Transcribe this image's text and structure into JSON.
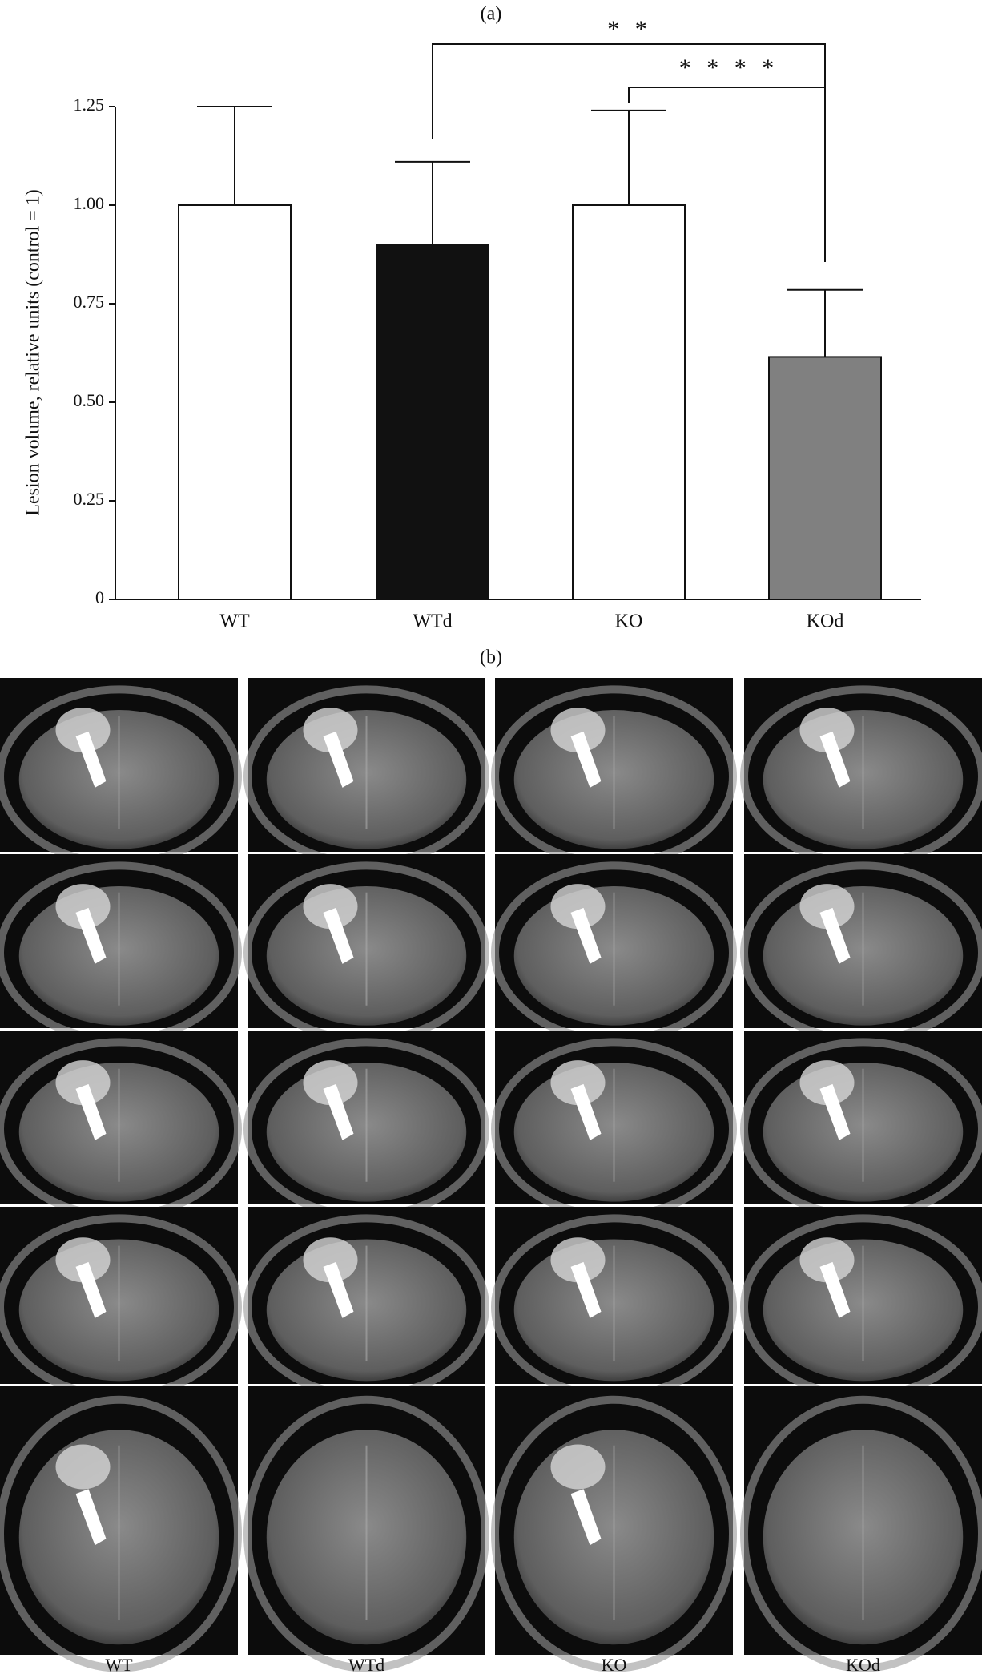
{
  "chart_data": {
    "type": "bar",
    "title": "(a)",
    "y_label": "Lesion volume, relative units (control = 1)",
    "categories": [
      "WT",
      "WTd",
      "KO",
      "KOd"
    ],
    "values": [
      1.0,
      0.9,
      1.0,
      0.615
    ],
    "errors": [
      0.25,
      0.21,
      0.24,
      0.17
    ],
    "colors": [
      "#ffffff",
      "#111111",
      "#ffffff",
      "#808080"
    ],
    "ylim": [
      0,
      1.25
    ],
    "yticks": [
      0,
      0.25,
      {
        "value": 0.5,
        "label": "0.50"
      },
      0.75,
      {
        "value": 1.0,
        "label": "1.00"
      },
      1.25
    ],
    "annotations": [
      "* *",
      "* * * *"
    ]
  },
  "panel_b": {
    "title": "(b)",
    "columns": [
      "WT",
      "WTd",
      "KO",
      "KOd"
    ]
  }
}
